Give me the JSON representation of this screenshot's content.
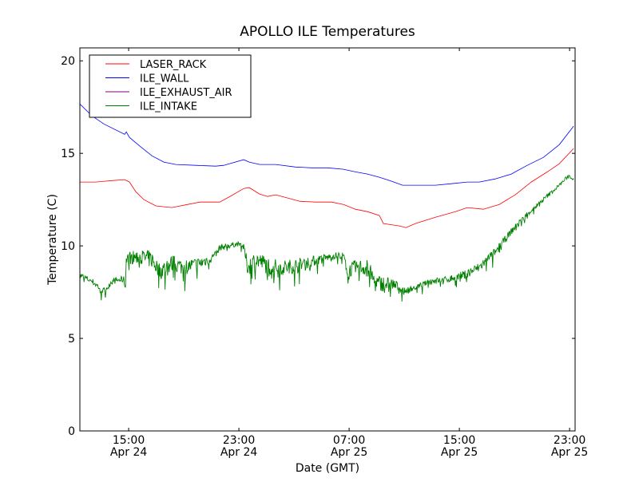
{
  "chart_data": {
    "type": "line",
    "title": "APOLLO ILE Temperatures",
    "xlabel": "Date (GMT)",
    "ylabel": "Temperature (C)",
    "x_units": "hours since Apr 24 00:00 GMT",
    "xlim": [
      11.46,
      47.4
    ],
    "ylim": [
      0,
      20.7
    ],
    "grid": false,
    "legend_position": "top-left",
    "x_ticks": [
      {
        "value": 15,
        "time": "15:00",
        "date": "Apr 24"
      },
      {
        "value": 23,
        "time": "23:00",
        "date": "Apr 24"
      },
      {
        "value": 31,
        "time": "07:00",
        "date": "Apr 25"
      },
      {
        "value": 39,
        "time": "15:00",
        "date": "Apr 25"
      },
      {
        "value": 47,
        "time": "23:00",
        "date": "Apr 25"
      }
    ],
    "y_ticks": [
      0,
      5,
      10,
      15,
      20
    ],
    "series": [
      {
        "name": "LASER_RACK",
        "color": "#ff0000",
        "x": [
          11.46,
          12.62,
          13.78,
          14.71,
          15.06,
          15.52,
          16.1,
          16.97,
          18.13,
          19.29,
          20.16,
          21.61,
          22.48,
          23.35,
          23.75,
          24.51,
          25.09,
          25.67,
          26.54,
          27.41,
          28.57,
          29.72,
          30.59,
          31.46,
          32.33,
          33.2,
          33.49,
          34.65,
          35.12,
          35.81,
          37.26,
          38.71,
          39.58,
          40.74,
          41.9,
          43.06,
          44.22,
          45.38,
          46.25,
          47.29
        ],
        "y": [
          13.45,
          13.45,
          13.53,
          13.58,
          13.45,
          12.93,
          12.5,
          12.16,
          12.07,
          12.24,
          12.37,
          12.37,
          12.72,
          13.1,
          13.15,
          12.8,
          12.67,
          12.76,
          12.59,
          12.41,
          12.37,
          12.37,
          12.24,
          11.98,
          11.85,
          11.64,
          11.21,
          11.08,
          10.99,
          11.21,
          11.55,
          11.85,
          12.07,
          11.98,
          12.24,
          12.76,
          13.45,
          14.0,
          14.44,
          15.26
        ]
      },
      {
        "name": "ILE_WALL",
        "color": "#0000ff",
        "x": [
          11.46,
          12.33,
          13.2,
          14.71,
          14.83,
          15.06,
          15.81,
          16.68,
          17.55,
          18.42,
          19.87,
          21.32,
          21.9,
          23.35,
          23.75,
          24.51,
          25.67,
          27.12,
          28.28,
          29.43,
          30.59,
          31.46,
          32.33,
          33.2,
          34.07,
          34.88,
          35.81,
          37.26,
          38.42,
          39.58,
          40.45,
          41.61,
          42.77,
          43.93,
          45.09,
          46.25,
          47.29
        ],
        "y": [
          17.67,
          17.03,
          16.59,
          16.03,
          16.16,
          15.86,
          15.39,
          14.87,
          14.53,
          14.4,
          14.35,
          14.31,
          14.35,
          14.66,
          14.53,
          14.4,
          14.4,
          14.26,
          14.22,
          14.22,
          14.14,
          14.0,
          13.88,
          13.71,
          13.5,
          13.28,
          13.28,
          13.28,
          13.36,
          13.45,
          13.45,
          13.62,
          13.88,
          14.35,
          14.78,
          15.47,
          16.47
        ]
      },
      {
        "name": "ILE_EXHAUST_AIR",
        "color": "#800080",
        "x": [],
        "y": []
      },
      {
        "name": "ILE_INTAKE",
        "color": "#008000",
        "x": [
          11.46,
          12.33,
          13.2,
          13.78,
          14.65,
          14.77,
          14.83,
          15.81,
          16.68,
          17.26,
          18.13,
          19.0,
          20.16,
          21.32,
          21.61,
          23.06,
          23.35,
          23.64,
          24.22,
          25.38,
          26.54,
          27.7,
          28.86,
          30.01,
          30.59,
          30.88,
          31.46,
          32.33,
          32.91,
          34.07,
          34.65,
          34.94,
          35.81,
          36.97,
          38.13,
          39.29,
          40.45,
          41.61,
          42.77,
          43.93,
          45.09,
          46.25,
          46.94,
          47.29
        ],
        "y": [
          8.41,
          8.1,
          7.54,
          8.1,
          8.19,
          7.76,
          9.4,
          9.4,
          9.27,
          8.62,
          9.05,
          8.84,
          9.05,
          9.48,
          9.91,
          10.13,
          9.91,
          8.84,
          9.27,
          8.84,
          8.84,
          9.05,
          9.27,
          9.48,
          9.48,
          8.62,
          8.84,
          8.84,
          7.97,
          7.97,
          7.76,
          7.54,
          7.76,
          8.1,
          8.19,
          8.41,
          8.84,
          9.7,
          10.78,
          11.72,
          12.5,
          13.28,
          13.79,
          13.58
        ],
        "noise": [
          0.3,
          0.3,
          0.3,
          0.3,
          0.3,
          0.3,
          0.5,
          0.7,
          0.8,
          0.8,
          0.8,
          0.7,
          0.6,
          0.4,
          0.3,
          0.2,
          0.3,
          0.8,
          0.8,
          0.8,
          0.7,
          0.6,
          0.4,
          0.3,
          0.3,
          0.6,
          0.7,
          0.8,
          0.8,
          0.6,
          0.4,
          0.3,
          0.25,
          0.25,
          0.3,
          0.4,
          0.45,
          0.35,
          0.3,
          0.25,
          0.2,
          0.15,
          0.15,
          0.1
        ]
      }
    ]
  }
}
